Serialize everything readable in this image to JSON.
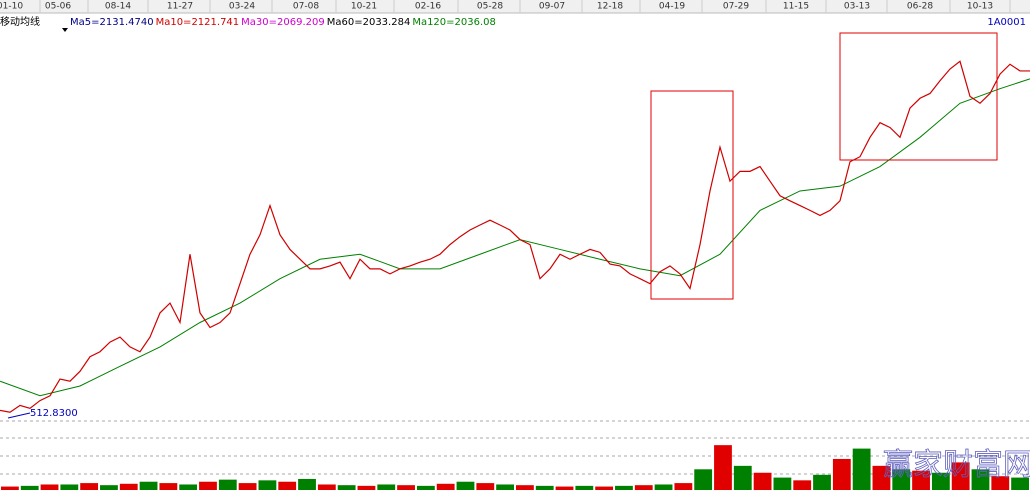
{
  "chart_data": {
    "type": "line",
    "code": "1A0001",
    "legend_title": "移动均线",
    "annotations": [
      "512.8300"
    ],
    "watermark": "赢家财富网",
    "xlim": [
      0,
      103
    ],
    "xticks": [
      {
        "value": 1,
        "label": "01-10"
      },
      {
        "value": 5.8,
        "label": "05-06"
      },
      {
        "value": 11.8,
        "label": "08-14"
      },
      {
        "value": 18,
        "label": "11-27"
      },
      {
        "value": 24.2,
        "label": "03-24"
      },
      {
        "value": 30.6,
        "label": "07-08"
      },
      {
        "value": 36.4,
        "label": "10-21"
      },
      {
        "value": 42.8,
        "label": "02-16"
      },
      {
        "value": 49,
        "label": "05-28"
      },
      {
        "value": 55.2,
        "label": "09-07"
      },
      {
        "value": 61,
        "label": "12-18"
      },
      {
        "value": 67.2,
        "label": "04-19"
      },
      {
        "value": 73.6,
        "label": "07-29"
      },
      {
        "value": 79.6,
        "label": "11-15"
      },
      {
        "value": 85.7,
        "label": "03-13"
      },
      {
        "value": 92,
        "label": "06-28"
      },
      {
        "value": 98,
        "label": "10-13"
      }
    ],
    "ylim": [
      503,
      2371
    ],
    "series": [
      {
        "color": "#d00000",
        "values": [
          549,
          540,
          573,
          559,
          596,
          619,
          699,
          689,
          736,
          806,
          830,
          876,
          900,
          853,
          830,
          900,
          1016,
          1063,
          970,
          1297,
          1016,
          946,
          970,
          1016,
          1156,
          1297,
          1390,
          1530,
          1390,
          1320,
          1273,
          1227,
          1227,
          1241,
          1259,
          1180,
          1273,
          1227,
          1227,
          1203,
          1227,
          1241,
          1259,
          1273,
          1297,
          1343,
          1381,
          1413,
          1437,
          1460,
          1437,
          1413,
          1367,
          1343,
          1180,
          1227,
          1297,
          1273,
          1297,
          1320,
          1306,
          1250,
          1241,
          1203,
          1180,
          1156,
          1213,
          1241,
          1203,
          1133,
          1343,
          1600,
          1810,
          1647,
          1694,
          1694,
          1717,
          1647,
          1577,
          1553,
          1530,
          1507,
          1483,
          1507,
          1553,
          1740,
          1764,
          1857,
          1927,
          1904,
          1857,
          1997,
          2044,
          2067,
          2128,
          2184,
          2221,
          2053,
          2020,
          2067,
          2160,
          2207,
          2175,
          2175
        ]
      }
    ],
    "ma_lines": [
      {
        "name": "Ma5=2131.4740",
        "color": "#000080"
      },
      {
        "name": "Ma10=2121.741",
        "color": "#d00000"
      },
      {
        "name": "Ma30=2069.209",
        "color": "#cc00cc"
      },
      {
        "name": "Ma60=2033.284",
        "color": "#000000"
      },
      {
        "name": "Ma120=2036.08",
        "color": "#008000",
        "x": [
          0,
          4,
          8,
          12,
          16,
          20,
          24,
          28,
          32,
          36,
          40,
          44,
          48,
          52,
          56,
          60,
          64,
          68,
          72,
          76,
          80,
          84,
          88,
          92,
          96,
          100,
          103
        ],
        "values": [
          689,
          619,
          666,
          760,
          853,
          970,
          1063,
          1180,
          1273,
          1297,
          1227,
          1227,
          1297,
          1367,
          1320,
          1273,
          1227,
          1194,
          1297,
          1507,
          1600,
          1623,
          1717,
          1857,
          2020,
          2090,
          2137
        ]
      }
    ],
    "volume": {
      "ylim": [
        0,
        100
      ],
      "colors": [
        "#e00000",
        "#008000"
      ],
      "values": [
        5,
        6,
        8,
        8,
        10,
        7,
        9,
        12,
        10,
        8,
        12,
        15,
        10,
        14,
        12,
        16,
        8,
        7,
        6,
        8,
        7,
        6,
        9,
        12,
        10,
        8,
        7,
        6,
        5,
        6,
        5,
        6,
        7,
        8,
        10,
        30,
        65,
        35,
        25,
        18,
        14,
        22,
        45,
        60,
        35,
        30,
        28,
        25,
        40,
        30,
        20,
        18
      ]
    }
  }
}
